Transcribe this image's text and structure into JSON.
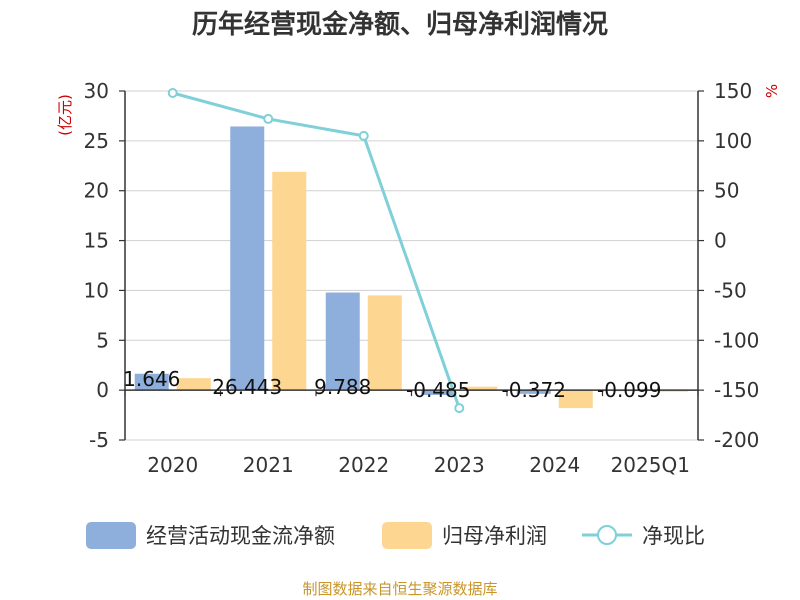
{
  "title": "历年经营现金净额、归母净利润情况",
  "source": "制图数据来自恒生聚源数据库",
  "colors": {
    "cash": "#8eaedb",
    "profit": "#fdd692",
    "ratio": "#7fd0d8",
    "axis": "#333333",
    "grid": "#d0d0d0",
    "unit": "#cc0000",
    "source": "#c9952a"
  },
  "chart_data": {
    "type": "bar",
    "title": "历年经营现金净额、归母净利润情况",
    "categories": [
      "2020",
      "2021",
      "2022",
      "2023",
      "2024",
      "2025Q1"
    ],
    "left_axis": {
      "label": "(亿元)",
      "min": -5,
      "max": 30,
      "ticks": [
        30,
        25,
        20,
        15,
        10,
        5,
        0,
        -5
      ]
    },
    "right_axis": {
      "label": "%",
      "min": -200,
      "max": 150,
      "ticks": [
        150,
        100,
        50,
        0,
        -50,
        -100,
        -150,
        -200
      ]
    },
    "series": [
      {
        "name": "经营活动现金流净额",
        "type": "bar",
        "axis": "left",
        "values": [
          1.646,
          26.443,
          9.788,
          -0.485,
          -0.372,
          -0.099
        ],
        "labels": [
          "1.646",
          "26.443",
          "9.788",
          "-0.485",
          "-0.372",
          "-0.099"
        ]
      },
      {
        "name": "归母净利润",
        "type": "bar",
        "axis": "left",
        "values": [
          1.2,
          21.9,
          9.5,
          0.35,
          -1.8,
          -0.15
        ]
      },
      {
        "name": "净现比",
        "type": "line",
        "axis": "right",
        "values": [
          148,
          122,
          105,
          -168,
          null,
          null
        ]
      }
    ],
    "legend": [
      "经营活动现金流净额",
      "归母净利润",
      "净现比"
    ],
    "legend_position": "bottom",
    "grid": true
  }
}
